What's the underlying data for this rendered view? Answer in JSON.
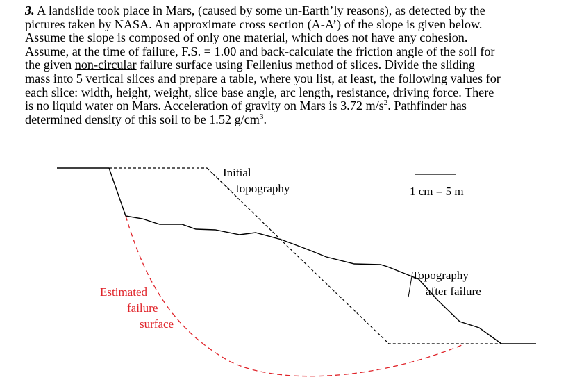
{
  "problem": {
    "number": "3.",
    "lines": [
      " A landslide took place in Mars, (caused by some un-Earth’ly reasons), as detected by the",
      "pictures taken by NASA. An approximate cross section (A-A’) of the slope is given below.",
      "Assume the slope is composed of only one material, which does not have any cohesion.",
      "Assume, at the time of failure, F.S. = 1.00 and back-calculate the friction angle of the soil for",
      "mass into 5 vertical slices and prepare a table, where you list, at least, the following values for",
      "each slice: width, height, weight, slice base angle, arc length, resistance, driving force. There"
    ],
    "line5": {
      "before": "the given ",
      "underlined": "non-circular",
      "after": " failure surface using Fellenius method of slices. Divide the sliding"
    },
    "line8": {
      "before": "is no liquid water on Mars. Acceleration of gravity on Mars is 3.72 m/s",
      "sup": "2",
      "after": ". Pathfinder has"
    },
    "line9": {
      "before": "determined density of this soil to be 1.52 g/cm",
      "sup": "3",
      "after": "."
    }
  },
  "diagram": {
    "initial_label": [
      "Initial",
      "topography"
    ],
    "scale": "1 cm = 5 m",
    "after_label": [
      "Topography",
      "after failure"
    ],
    "failure_label": [
      "Estimated",
      "failure",
      "surface"
    ]
  }
}
